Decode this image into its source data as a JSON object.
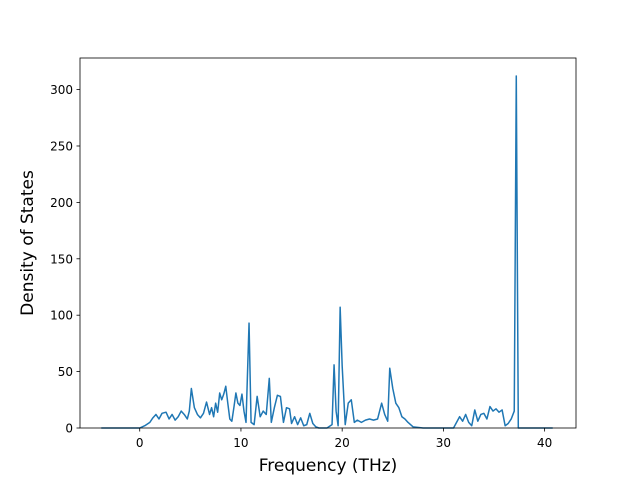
{
  "chart_data": {
    "type": "line",
    "title": "",
    "xlabel": "Frequency (THz)",
    "ylabel": "Density of States",
    "xlim": [
      -5.9,
      43.1
    ],
    "ylim": [
      0,
      328
    ],
    "xticks": [
      0,
      10,
      20,
      30,
      40
    ],
    "yticks": [
      0,
      50,
      100,
      150,
      200,
      250,
      300
    ],
    "grid": false,
    "color": "#1f77b4",
    "series": [
      {
        "x": [
          -3.8,
          -1.0,
          0.0,
          0.5,
          1.0,
          1.3,
          1.6,
          1.9,
          2.2,
          2.6,
          2.9,
          3.2,
          3.5,
          3.8,
          4.1,
          4.4,
          4.7,
          4.9,
          5.1,
          5.4,
          5.7,
          6.0,
          6.3,
          6.6,
          6.9,
          7.1,
          7.3,
          7.5,
          7.7,
          7.9,
          8.1,
          8.3,
          8.5,
          8.7,
          8.9,
          9.1,
          9.3,
          9.5,
          9.7,
          9.9,
          10.1,
          10.3,
          10.5,
          10.8,
          11.0,
          11.3,
          11.6,
          11.9,
          12.2,
          12.5,
          12.8,
          13.0,
          13.3,
          13.6,
          13.9,
          14.2,
          14.5,
          14.8,
          15.0,
          15.3,
          15.6,
          15.9,
          16.2,
          16.5,
          16.8,
          17.1,
          17.4,
          17.7,
          18.0,
          18.5,
          19.0,
          19.2,
          19.4,
          19.6,
          19.8,
          20.0,
          20.3,
          20.6,
          20.9,
          21.2,
          21.5,
          21.9,
          22.3,
          22.7,
          23.1,
          23.5,
          23.9,
          24.2,
          24.5,
          24.7,
          25.0,
          25.3,
          25.6,
          25.9,
          26.2,
          26.5,
          27.0,
          28.0,
          29.0,
          30.0,
          31.0,
          31.3,
          31.6,
          31.9,
          32.2,
          32.5,
          32.8,
          33.1,
          33.4,
          33.7,
          34.0,
          34.3,
          34.6,
          34.9,
          35.2,
          35.5,
          35.8,
          36.1,
          36.4,
          36.7,
          37.0,
          37.2,
          37.4,
          38.0,
          40.8
        ],
        "y": [
          0,
          0,
          0,
          2,
          5,
          9,
          12,
          8,
          13,
          14,
          8,
          12,
          7,
          10,
          15,
          12,
          8,
          15,
          35,
          18,
          12,
          9,
          13,
          23,
          12,
          18,
          10,
          22,
          14,
          31,
          25,
          30,
          37,
          22,
          8,
          6,
          18,
          31,
          22,
          20,
          30,
          15,
          5,
          93,
          5,
          3,
          28,
          10,
          15,
          12,
          44,
          5,
          18,
          29,
          28,
          5,
          18,
          17,
          4,
          10,
          3,
          9,
          2,
          3,
          13,
          4,
          1,
          0,
          0,
          0,
          3,
          56,
          15,
          2,
          107,
          55,
          3,
          22,
          25,
          5,
          7,
          5,
          7,
          8,
          7,
          8,
          22,
          12,
          6,
          53,
          35,
          22,
          18,
          10,
          8,
          5,
          1,
          0,
          0,
          0,
          0,
          5,
          10,
          6,
          12,
          5,
          2,
          16,
          6,
          12,
          13,
          8,
          19,
          15,
          17,
          14,
          16,
          2,
          4,
          8,
          15,
          312,
          0,
          0,
          0
        ]
      }
    ]
  }
}
